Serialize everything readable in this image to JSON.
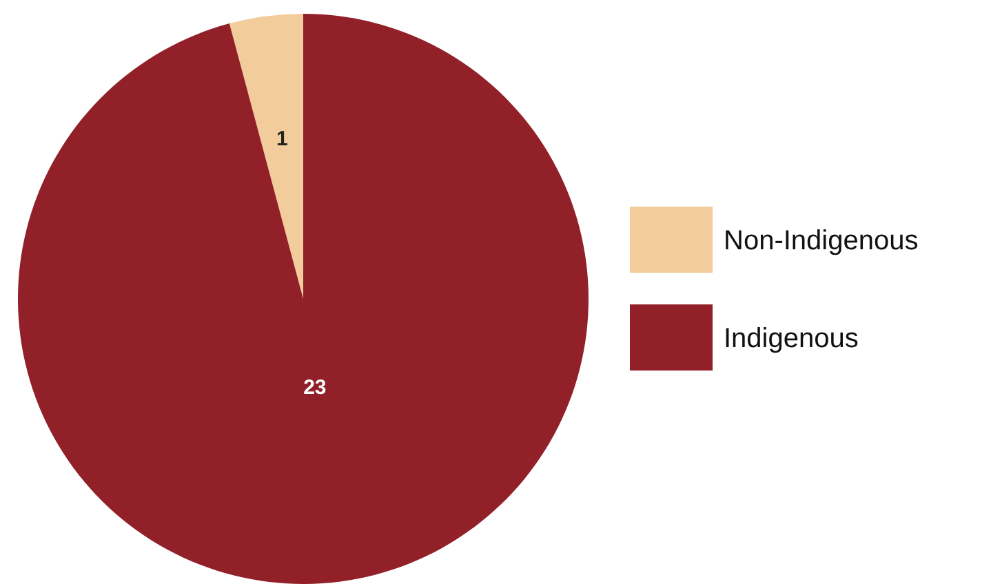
{
  "chart_data": {
    "type": "pie",
    "categories": [
      "Non-Indigenous",
      "Indigenous"
    ],
    "values": [
      1,
      23
    ],
    "colors": [
      "#f2cd9b",
      "#922029"
    ],
    "data_labels": true,
    "legend": "right"
  }
}
